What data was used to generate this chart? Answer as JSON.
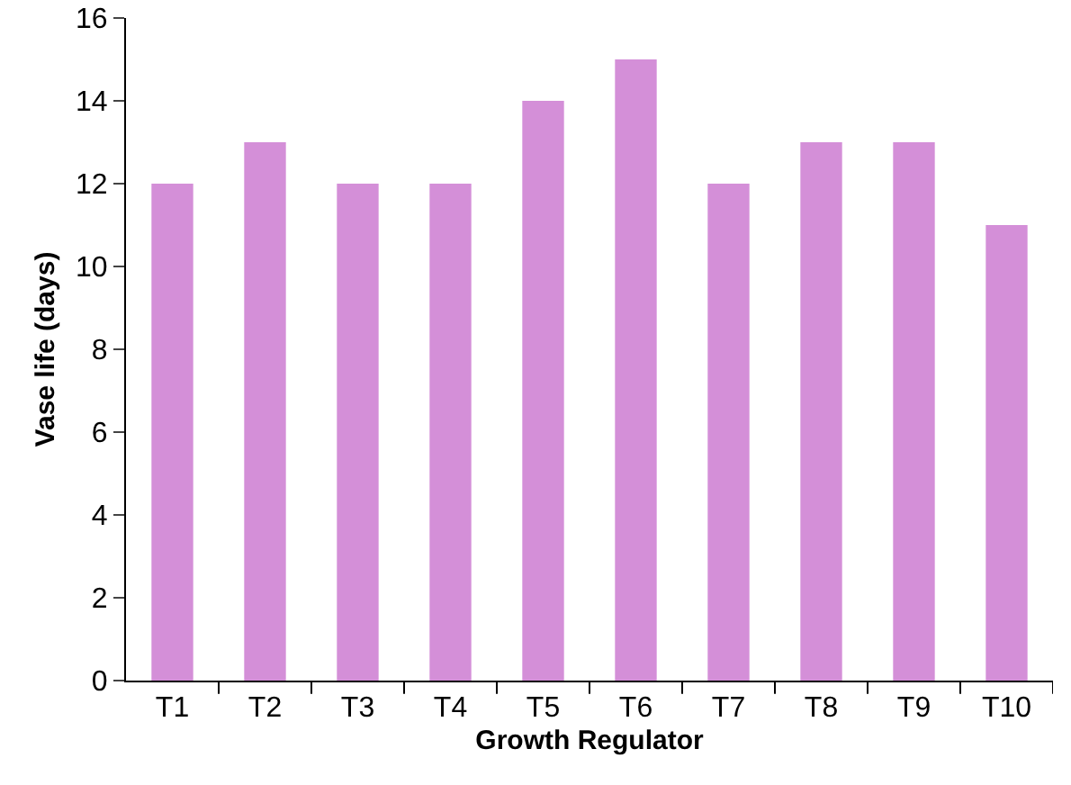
{
  "chart_data": {
    "type": "bar",
    "xlabel": "Growth Regulator",
    "ylabel": "Vase life (days)",
    "categories": [
      "T1",
      "T2",
      "T3",
      "T4",
      "T5",
      "T6",
      "T7",
      "T8",
      "T9",
      "T10"
    ],
    "values": [
      12,
      13,
      12,
      12,
      14,
      15,
      12,
      13,
      13,
      11
    ],
    "color": "#d48fd8",
    "ylim": [
      0,
      16
    ],
    "yticks": [
      0,
      2,
      4,
      6,
      8,
      10,
      12,
      14,
      16
    ],
    "grid": false
  }
}
